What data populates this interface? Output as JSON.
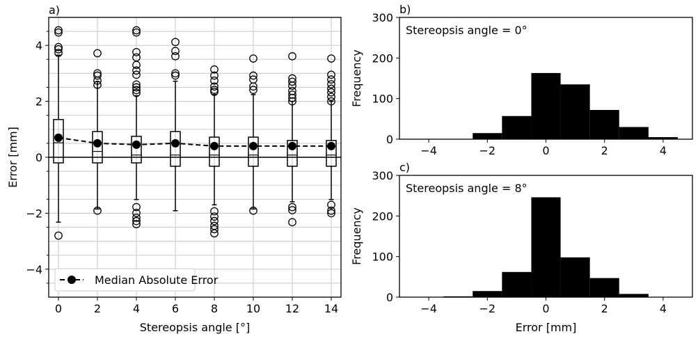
{
  "chart_data": [
    {
      "panel_label": "a)",
      "type": "box",
      "xlabel": "Stereopsis angle [°]",
      "ylabel": "Error [mm]",
      "xlim": [
        -0.5,
        14.5
      ],
      "ylim": [
        -5,
        5
      ],
      "xticks": [
        0,
        2,
        4,
        6,
        8,
        10,
        12,
        14
      ],
      "yticks": [
        -4,
        -2,
        0,
        2,
        4
      ],
      "grid": true,
      "legend": {
        "position": "lower-left",
        "entries": [
          "Median Absolute Error"
        ]
      },
      "boxes": [
        {
          "x": 0,
          "q1": -0.2,
          "median": 0.52,
          "q3": 1.35,
          "whisker_low": -2.32,
          "whisker_high": 3.65,
          "outliers": [
            4.54,
            4.46,
            3.94,
            3.86,
            3.73,
            -2.8
          ]
        },
        {
          "x": 2,
          "q1": -0.2,
          "median": 0.21,
          "q3": 0.92,
          "whisker_low": -1.85,
          "whisker_high": 2.7,
          "outliers": [
            3.72,
            3.0,
            2.92,
            2.74,
            2.59,
            -1.91
          ]
        },
        {
          "x": 4,
          "q1": -0.2,
          "median": 0.08,
          "q3": 0.75,
          "whisker_low": -1.51,
          "whisker_high": 2.2,
          "outliers": [
            4.54,
            4.46,
            3.76,
            3.57,
            3.3,
            3.1,
            2.95,
            2.6,
            2.5,
            2.4,
            2.3,
            -1.78,
            -1.99,
            -2.16,
            -2.28,
            -2.39
          ]
        },
        {
          "x": 6,
          "q1": -0.32,
          "median": 0.08,
          "q3": 0.92,
          "whisker_low": -1.91,
          "whisker_high": 2.72,
          "outliers": [
            4.12,
            3.8,
            3.61,
            3.0,
            2.92
          ]
        },
        {
          "x": 8,
          "q1": -0.32,
          "median": 0.08,
          "q3": 0.72,
          "whisker_low": -1.7,
          "whisker_high": 2.24,
          "outliers": [
            3.14,
            2.92,
            2.74,
            2.53,
            2.41,
            2.34,
            -1.93,
            -2.12,
            -2.28,
            -2.45,
            -2.57,
            -2.72
          ]
        },
        {
          "x": 10,
          "q1": -0.32,
          "median": 0.08,
          "q3": 0.72,
          "whisker_low": -1.85,
          "whisker_high": 2.24,
          "outliers": [
            3.53,
            2.92,
            2.78,
            2.53,
            2.41,
            -1.91
          ]
        },
        {
          "x": 12,
          "q1": -0.32,
          "median": 0.08,
          "q3": 0.6,
          "whisker_low": -1.59,
          "whisker_high": 2.0,
          "outliers": [
            3.61,
            2.82,
            2.7,
            2.56,
            2.37,
            2.24,
            2.12,
            2.0,
            -1.78,
            -1.89,
            -2.32
          ]
        },
        {
          "x": 14,
          "q1": -0.32,
          "median": 0.08,
          "q3": 0.6,
          "whisker_low": -1.51,
          "whisker_high": 2.0,
          "outliers": [
            3.53,
            2.95,
            2.78,
            2.61,
            2.45,
            2.32,
            2.16,
            2.0,
            -1.7,
            -1.91,
            -2.0
          ]
        }
      ],
      "series": [
        {
          "name": "Median Absolute Error",
          "type": "line",
          "style": "dashed",
          "marker": "filled-circle",
          "x": [
            0,
            2,
            4,
            6,
            8,
            10,
            12,
            14
          ],
          "y": [
            0.7,
            0.5,
            0.45,
            0.5,
            0.4,
            0.4,
            0.4,
            0.4
          ]
        }
      ]
    },
    {
      "panel_label": "b)",
      "type": "bar",
      "annotation": "Stereopsis angle = 0°",
      "xlabel": "",
      "ylabel": "Frequency",
      "xlim": [
        -5,
        5
      ],
      "ylim": [
        0,
        300
      ],
      "xticks": [
        -4,
        -2,
        0,
        2,
        4
      ],
      "yticks": [
        0,
        100,
        200,
        300
      ],
      "bin_edges": [
        -2.5,
        -1.5,
        -0.5,
        0.5,
        1.5,
        2.5,
        3.5,
        4.5
      ],
      "values": [
        15,
        57,
        163,
        135,
        72,
        30,
        5
      ]
    },
    {
      "panel_label": "c)",
      "type": "bar",
      "annotation": "Stereopsis angle = 8°",
      "xlabel": "Error [mm]",
      "ylabel": "Frequency",
      "xlim": [
        -5,
        5
      ],
      "ylim": [
        0,
        300
      ],
      "xticks": [
        -4,
        -2,
        0,
        2,
        4
      ],
      "yticks": [
        0,
        100,
        200,
        300
      ],
      "bin_edges": [
        -3.5,
        -2.5,
        -1.5,
        -0.5,
        0.5,
        1.5,
        2.5,
        3.5
      ],
      "values": [
        2,
        15,
        62,
        246,
        98,
        47,
        8
      ]
    }
  ]
}
